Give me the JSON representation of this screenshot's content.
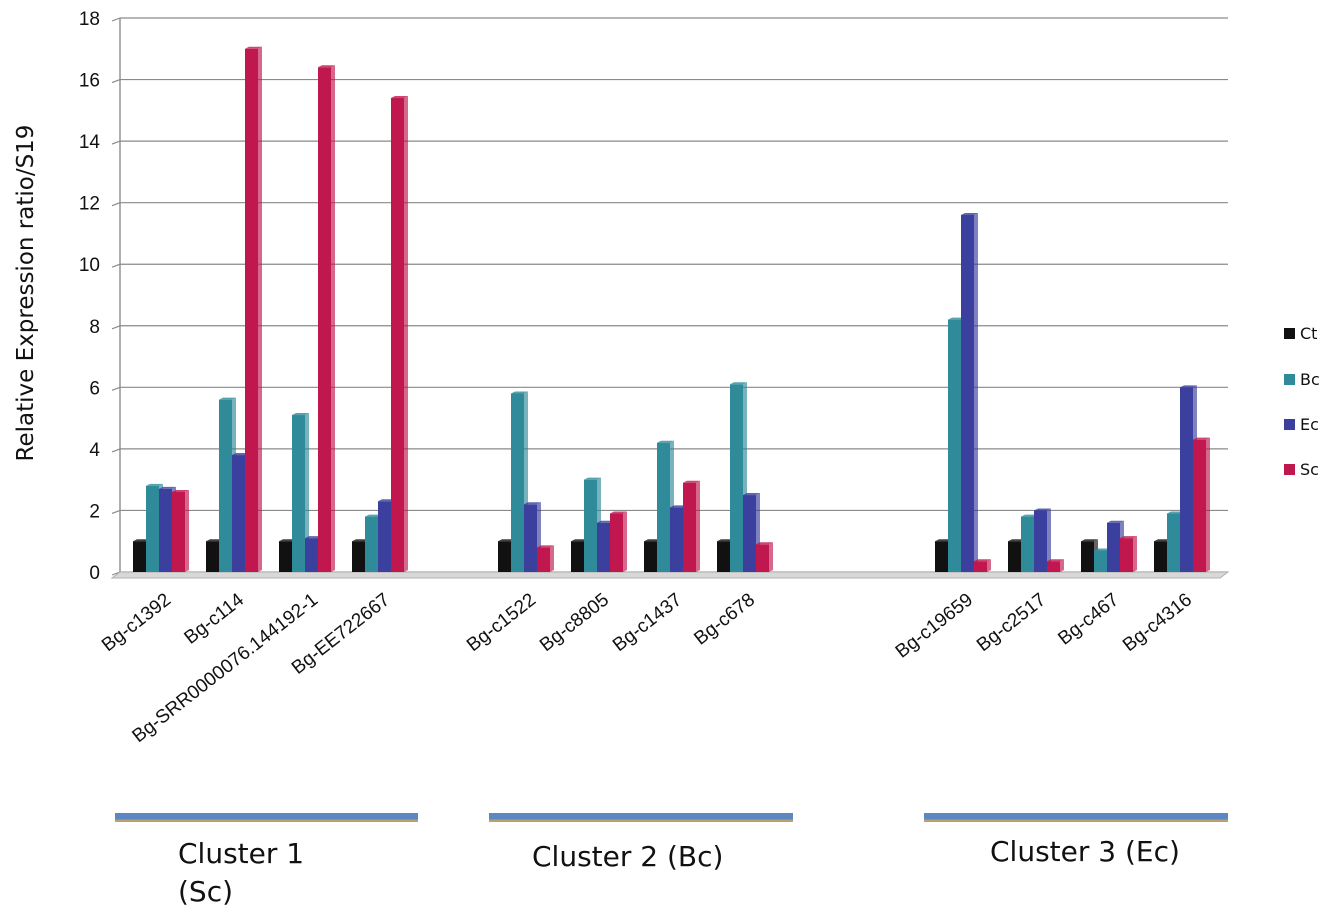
{
  "chart_data": {
    "type": "bar",
    "title": "",
    "xlabel": "",
    "ylabel": "Relative Expression ratio/S19",
    "ylim": [
      0,
      18
    ],
    "yticks": [
      0,
      2,
      4,
      6,
      8,
      10,
      12,
      14,
      16,
      18
    ],
    "grid": true,
    "legend_position": "right",
    "categories": [
      "Bg-c1392",
      "Bg-c114",
      "Bg-SRR0000076.144192-1",
      "Bg-EE722667",
      "Bg-c1522",
      "Bg-c8805",
      "Bg-c1437",
      "Bg-c678",
      "Bg-c19659",
      "Bg-c2517",
      "Bg-c467",
      "Bg-c4316"
    ],
    "series": [
      {
        "name": "Ct",
        "color": "#111111",
        "values": [
          1,
          1,
          1,
          1,
          1,
          1,
          1,
          1,
          1,
          1,
          1,
          1
        ]
      },
      {
        "name": "Bc",
        "color": "#2f8a9a",
        "values": [
          2.8,
          5.6,
          5.1,
          1.8,
          5.8,
          3.0,
          4.2,
          6.1,
          8.2,
          1.8,
          0.7,
          1.9
        ]
      },
      {
        "name": "Ec",
        "color": "#3b3f9e",
        "values": [
          2.7,
          3.8,
          1.1,
          2.3,
          2.2,
          1.6,
          2.1,
          2.5,
          11.6,
          2.0,
          1.6,
          6.0
        ]
      },
      {
        "name": "Sc",
        "color": "#c0174e",
        "values": [
          2.6,
          17.0,
          16.4,
          15.4,
          0.8,
          1.9,
          2.9,
          0.9,
          0.35,
          0.35,
          1.1,
          4.3
        ]
      }
    ],
    "clusters": [
      {
        "label_line1": "Cluster 1",
        "label_line2": "(Sc)",
        "categories": [
          0,
          1,
          2,
          3
        ]
      },
      {
        "label_line1": "Cluster 2 (Bc)",
        "label_line2": "",
        "categories": [
          4,
          5,
          6,
          7
        ]
      },
      {
        "label_line1": "Cluster 3 (Ec)",
        "label_line2": "",
        "categories": [
          8,
          9,
          10,
          11
        ]
      }
    ]
  }
}
